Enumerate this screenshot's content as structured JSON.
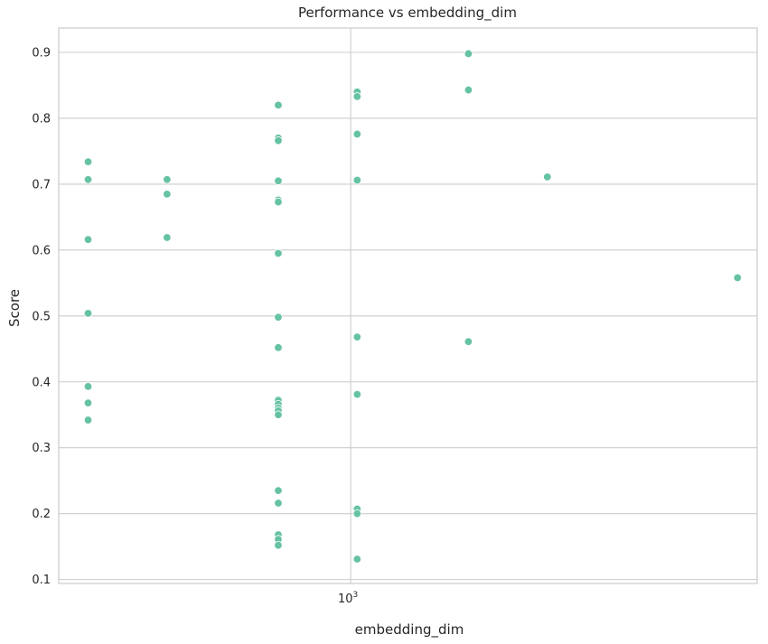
{
  "chart_data": {
    "type": "scatter",
    "title": "Performance vs embedding_dim",
    "xlabel": "embedding_dim",
    "ylabel": "Score",
    "x_scale": "log",
    "xlim": [
      345,
      4400
    ],
    "ylim": [
      0.094,
      0.937
    ],
    "grid": true,
    "point_color": "#66c2a5",
    "x_ticks": [
      {
        "value": 1000,
        "base": "10",
        "exp": "3"
      }
    ],
    "y_ticks": [
      {
        "value": 0.1,
        "label": "0.1"
      },
      {
        "value": 0.2,
        "label": "0.2"
      },
      {
        "value": 0.3,
        "label": "0.3"
      },
      {
        "value": 0.4,
        "label": "0.4"
      },
      {
        "value": 0.5,
        "label": "0.5"
      },
      {
        "value": 0.6,
        "label": "0.6"
      },
      {
        "value": 0.7,
        "label": "0.7"
      },
      {
        "value": 0.8,
        "label": "0.8"
      },
      {
        "value": 0.9,
        "label": "0.9"
      }
    ],
    "points": [
      {
        "x": 384,
        "y": 0.734
      },
      {
        "x": 384,
        "y": 0.707
      },
      {
        "x": 384,
        "y": 0.616
      },
      {
        "x": 384,
        "y": 0.504
      },
      {
        "x": 384,
        "y": 0.393
      },
      {
        "x": 384,
        "y": 0.368
      },
      {
        "x": 384,
        "y": 0.342
      },
      {
        "x": 512,
        "y": 0.707
      },
      {
        "x": 512,
        "y": 0.685
      },
      {
        "x": 512,
        "y": 0.619
      },
      {
        "x": 768,
        "y": 0.82
      },
      {
        "x": 768,
        "y": 0.77
      },
      {
        "x": 768,
        "y": 0.766
      },
      {
        "x": 768,
        "y": 0.705
      },
      {
        "x": 768,
        "y": 0.676
      },
      {
        "x": 768,
        "y": 0.673
      },
      {
        "x": 768,
        "y": 0.595
      },
      {
        "x": 768,
        "y": 0.498
      },
      {
        "x": 768,
        "y": 0.452
      },
      {
        "x": 768,
        "y": 0.372
      },
      {
        "x": 768,
        "y": 0.366
      },
      {
        "x": 768,
        "y": 0.36
      },
      {
        "x": 768,
        "y": 0.356
      },
      {
        "x": 768,
        "y": 0.35
      },
      {
        "x": 768,
        "y": 0.235
      },
      {
        "x": 768,
        "y": 0.216
      },
      {
        "x": 768,
        "y": 0.168
      },
      {
        "x": 768,
        "y": 0.161
      },
      {
        "x": 768,
        "y": 0.152
      },
      {
        "x": 1024,
        "y": 0.84
      },
      {
        "x": 1024,
        "y": 0.833
      },
      {
        "x": 1024,
        "y": 0.776
      },
      {
        "x": 1024,
        "y": 0.706
      },
      {
        "x": 1024,
        "y": 0.468
      },
      {
        "x": 1024,
        "y": 0.381
      },
      {
        "x": 1024,
        "y": 0.207
      },
      {
        "x": 1024,
        "y": 0.2
      },
      {
        "x": 1024,
        "y": 0.131
      },
      {
        "x": 1536,
        "y": 0.898
      },
      {
        "x": 1536,
        "y": 0.843
      },
      {
        "x": 1536,
        "y": 0.461
      },
      {
        "x": 2048,
        "y": 0.711
      },
      {
        "x": 4096,
        "y": 0.558
      }
    ]
  }
}
